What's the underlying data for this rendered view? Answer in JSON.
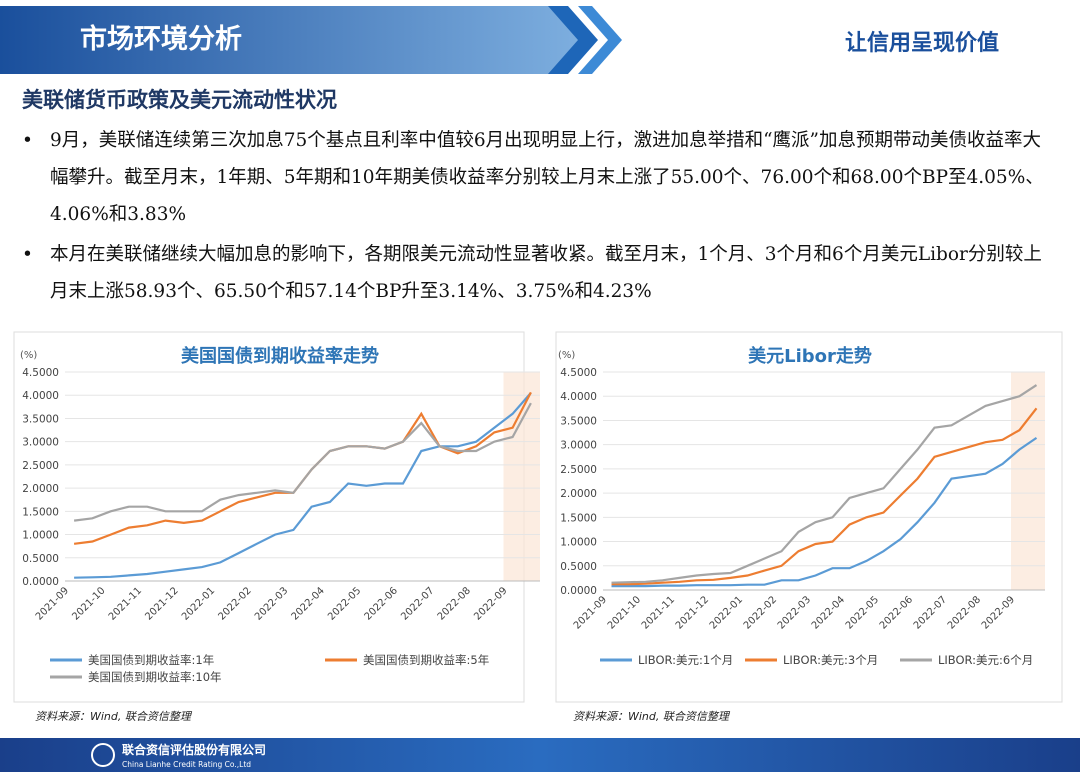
{
  "header": {
    "title": "市场环境分析",
    "slogan": "让信用呈现价值"
  },
  "section_title": "美联储货币政策及美元流动性状况",
  "bullets": [
    "9月，美联储连续第三次加息75个基点且利率中值较6月出现明显上行，激进加息举措和“鹰派”加息预期带动美债收益率大幅攀升。截至月末，1年期、5年期和10年期美债收益率分别较上月末上涨了55.00个、76.00个和68.00个BP至4.05%、4.06%和3.83%",
    "本月在美联储继续大幅加息的影响下，各期限美元流动性显著收紧。截至月末，1个月、3个月和6个月美元Libor分别较上月末上涨58.93个、65.50个和57.14个BP升至3.14%、3.75%和4.23%"
  ],
  "chart_data": [
    {
      "type": "line",
      "title": "美国国债到期收益率走势",
      "y_unit": "(%)",
      "source": "资料来源：Wind, 联合资信整理",
      "categories": [
        "2021-09",
        null,
        "2021-10",
        null,
        "2021-11",
        null,
        "2021-12",
        null,
        "2022-01",
        null,
        "2022-02",
        null,
        "2022-03",
        null,
        "2022-04",
        null,
        "2022-05",
        null,
        "2022-06",
        null,
        "2022-07",
        null,
        "2022-08",
        null,
        "2022-09",
        null
      ],
      "ylim": [
        0,
        4.5
      ],
      "yticks": [
        {
          "value": 0,
          "label": "0.0000"
        },
        {
          "value": 0.5,
          "label": "0.5000"
        },
        {
          "value": 1,
          "label": "1.0000"
        },
        {
          "value": 1.5,
          "label": "1.5000"
        },
        {
          "value": 2,
          "label": "2.0000"
        },
        {
          "value": 2.5,
          "label": "2.5000"
        },
        {
          "value": 3,
          "label": "3.0000"
        },
        {
          "value": 3.5,
          "label": "3.5000"
        },
        {
          "value": 4,
          "label": "4.0000"
        },
        {
          "value": 4.5,
          "label": "4.5000"
        }
      ],
      "grid": true,
      "series": [
        {
          "name": "美国国债到期收益率:1年",
          "color": "#5b9bd5",
          "values": [
            0.07,
            0.08,
            0.09,
            0.12,
            0.15,
            0.2,
            0.25,
            0.3,
            0.4,
            0.6,
            0.8,
            1.0,
            1.1,
            1.6,
            1.7,
            2.1,
            2.05,
            2.1,
            2.1,
            2.8,
            2.9,
            2.9,
            3.0,
            3.3,
            3.6,
            4.05
          ]
        },
        {
          "name": "美国国债到期收益率:5年",
          "color": "#ed7d31",
          "values": [
            0.8,
            0.85,
            1.0,
            1.15,
            1.2,
            1.3,
            1.25,
            1.3,
            1.5,
            1.7,
            1.8,
            1.9,
            1.9,
            2.4,
            2.8,
            2.9,
            2.9,
            2.85,
            3.0,
            3.6,
            2.9,
            2.75,
            2.9,
            3.2,
            3.3,
            4.06
          ]
        },
        {
          "name": "美国国债到期收益率:10年",
          "color": "#a5a5a5",
          "values": [
            1.3,
            1.35,
            1.5,
            1.6,
            1.6,
            1.5,
            1.5,
            1.5,
            1.75,
            1.85,
            1.9,
            1.95,
            1.9,
            2.4,
            2.8,
            2.9,
            2.9,
            2.85,
            3.0,
            3.4,
            2.9,
            2.8,
            2.8,
            3.0,
            3.1,
            3.83
          ]
        }
      ]
    },
    {
      "type": "line",
      "title": "美元Libor走势",
      "y_unit": "(%)",
      "source": "资料来源：Wind, 联合资信整理",
      "categories": [
        "2021-09",
        null,
        "2021-10",
        null,
        "2021-11",
        null,
        "2021-12",
        null,
        "2022-01",
        null,
        "2022-02",
        null,
        "2022-03",
        null,
        "2022-04",
        null,
        "2022-05",
        null,
        "2022-06",
        null,
        "2022-07",
        null,
        "2022-08",
        null,
        "2022-09",
        null
      ],
      "ylim": [
        0,
        4.5
      ],
      "yticks": [
        {
          "value": 0,
          "label": "0.0000"
        },
        {
          "value": 0.5,
          "label": "0.5000"
        },
        {
          "value": 1,
          "label": "1.0000"
        },
        {
          "value": 1.5,
          "label": "1.5000"
        },
        {
          "value": 2,
          "label": "2.0000"
        },
        {
          "value": 2.5,
          "label": "2.5000"
        },
        {
          "value": 3,
          "label": "3.0000"
        },
        {
          "value": 3.5,
          "label": "3.5000"
        },
        {
          "value": 4,
          "label": "4.0000"
        },
        {
          "value": 4.5,
          "label": "4.5000"
        }
      ],
      "grid": true,
      "series": [
        {
          "name": "LIBOR:美元:1个月",
          "color": "#5b9bd5",
          "values": [
            0.08,
            0.08,
            0.08,
            0.09,
            0.09,
            0.1,
            0.1,
            0.1,
            0.11,
            0.11,
            0.2,
            0.2,
            0.3,
            0.45,
            0.45,
            0.6,
            0.8,
            1.05,
            1.4,
            1.8,
            2.3,
            2.35,
            2.4,
            2.6,
            2.9,
            3.14
          ]
        },
        {
          "name": "LIBOR:美元:3个月",
          "color": "#ed7d31",
          "values": [
            0.12,
            0.12,
            0.13,
            0.15,
            0.17,
            0.2,
            0.21,
            0.25,
            0.3,
            0.4,
            0.5,
            0.8,
            0.95,
            1.0,
            1.35,
            1.5,
            1.6,
            1.95,
            2.3,
            2.75,
            2.85,
            2.95,
            3.05,
            3.1,
            3.3,
            3.75
          ]
        },
        {
          "name": "LIBOR:美元:6个月",
          "color": "#a5a5a5",
          "values": [
            0.15,
            0.16,
            0.17,
            0.2,
            0.25,
            0.3,
            0.33,
            0.35,
            0.5,
            0.65,
            0.8,
            1.2,
            1.4,
            1.5,
            1.9,
            2.0,
            2.1,
            2.5,
            2.9,
            3.35,
            3.4,
            3.6,
            3.8,
            3.9,
            4.0,
            4.23
          ]
        }
      ]
    }
  ],
  "footer": {
    "company": "联合资信评估股份有限公司",
    "company_en": "China Lianhe Credit Rating Co.,Ltd"
  }
}
